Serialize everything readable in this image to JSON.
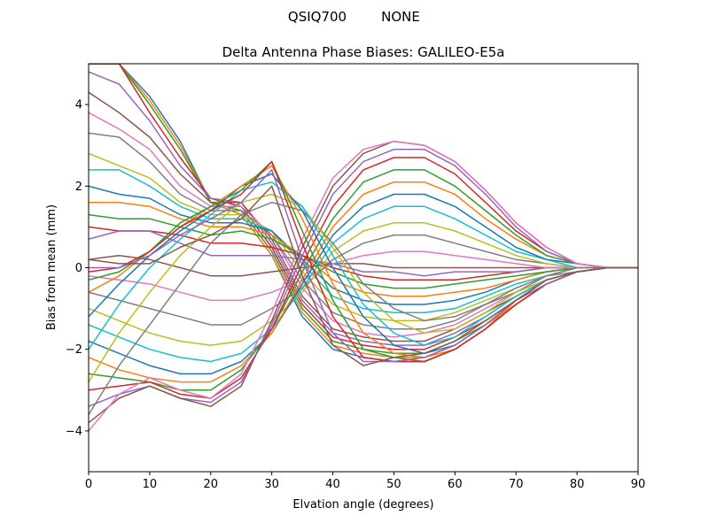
{
  "suptitle_left": "QSIQ700",
  "suptitle_right": "NONE",
  "chart_data": {
    "type": "line",
    "title": "Delta Antenna Phase Biases: GALILEO-E5a",
    "xlabel": "Elvation angle (degrees)",
    "ylabel": "Bias from mean (mm)",
    "xlim": [
      0,
      90
    ],
    "ylim": [
      -5,
      5
    ],
    "xticks": [
      "0",
      "10",
      "20",
      "30",
      "40",
      "50",
      "60",
      "70",
      "80",
      "90"
    ],
    "yticks": [
      "−4",
      "−2",
      "0",
      "2",
      "4"
    ],
    "grid": false,
    "legend": "none",
    "colors": [
      "#1f77b4",
      "#ff7f0e",
      "#2ca02c",
      "#d62728",
      "#9467bd",
      "#8c564b",
      "#e377c2",
      "#7f7f7f",
      "#bcbd22",
      "#17becf"
    ],
    "x": [
      0,
      5,
      10,
      15,
      20,
      25,
      30,
      35,
      40,
      45,
      50,
      55,
      60,
      65,
      70,
      75,
      80,
      85,
      90
    ],
    "series": [
      {
        "values": [
          5.0,
          5.0,
          4.2,
          3.1,
          1.6,
          1.3,
          0.3,
          -1.2,
          -2.0,
          -2.2,
          -2.3,
          -2.3,
          -2.0,
          -1.5,
          -0.9,
          -0.4,
          -0.1,
          0.0,
          0.0
        ]
      },
      {
        "values": [
          5.0,
          5.0,
          4.1,
          3.0,
          1.6,
          1.3,
          0.3,
          -1.1,
          -1.9,
          -2.1,
          -2.2,
          -2.2,
          -1.9,
          -1.4,
          -0.9,
          -0.4,
          -0.1,
          0.0,
          0.0
        ]
      },
      {
        "values": [
          5.0,
          5.0,
          4.0,
          2.9,
          1.6,
          1.4,
          0.4,
          -1.0,
          -1.8,
          -2.0,
          -2.1,
          -2.1,
          -1.8,
          -1.4,
          -0.8,
          -0.4,
          -0.1,
          0.0,
          0.0
        ]
      },
      {
        "values": [
          5.0,
          5.0,
          3.8,
          2.7,
          1.7,
          1.5,
          0.5,
          -0.9,
          -1.7,
          -1.9,
          -2.0,
          -2.0,
          -1.7,
          -1.3,
          -0.8,
          -0.3,
          -0.1,
          0.0,
          0.0
        ]
      },
      {
        "values": [
          4.8,
          4.5,
          3.6,
          2.5,
          1.7,
          1.6,
          0.6,
          -0.8,
          -1.6,
          -1.8,
          -1.9,
          -1.9,
          -1.6,
          -1.2,
          -0.7,
          -0.3,
          -0.1,
          0.0,
          0.0
        ]
      },
      {
        "values": [
          4.3,
          3.8,
          3.2,
          2.3,
          1.6,
          1.6,
          0.7,
          -0.7,
          -1.5,
          -1.7,
          -1.8,
          -1.8,
          -1.5,
          -1.1,
          -0.7,
          -0.3,
          -0.1,
          0.0,
          0.0
        ]
      },
      {
        "values": [
          3.8,
          3.4,
          2.9,
          2.0,
          1.5,
          1.5,
          0.8,
          -0.5,
          -1.3,
          -1.6,
          -1.7,
          -1.6,
          -1.4,
          -1.0,
          -0.6,
          -0.3,
          -0.1,
          0.0,
          0.0
        ]
      },
      {
        "values": [
          3.3,
          3.2,
          2.6,
          1.8,
          1.4,
          1.4,
          0.8,
          -0.3,
          -1.1,
          -1.4,
          -1.5,
          -1.5,
          -1.3,
          -0.9,
          -0.6,
          -0.2,
          -0.1,
          0.0,
          0.0
        ]
      },
      {
        "values": [
          2.8,
          2.5,
          2.2,
          1.6,
          1.3,
          1.3,
          0.9,
          -0.1,
          -0.9,
          -1.2,
          -1.3,
          -1.3,
          -1.1,
          -0.8,
          -0.5,
          -0.2,
          0.0,
          0.0,
          0.0
        ]
      },
      {
        "values": [
          2.4,
          2.4,
          2.0,
          1.5,
          1.2,
          1.2,
          0.9,
          0.1,
          -0.7,
          -1.0,
          -1.1,
          -1.1,
          -1.0,
          -0.7,
          -0.4,
          -0.2,
          0.0,
          0.0,
          0.0
        ]
      },
      {
        "values": [
          2.0,
          1.8,
          1.7,
          1.3,
          1.1,
          1.1,
          0.9,
          0.2,
          -0.5,
          -0.8,
          -0.9,
          -0.9,
          -0.8,
          -0.6,
          -0.3,
          -0.1,
          0.0,
          0.0,
          0.0
        ]
      },
      {
        "values": [
          1.6,
          1.6,
          1.5,
          1.2,
          1.0,
          1.0,
          0.8,
          0.3,
          -0.3,
          -0.6,
          -0.7,
          -0.7,
          -0.6,
          -0.5,
          -0.3,
          -0.1,
          0.0,
          0.0,
          0.0
        ]
      },
      {
        "values": [
          1.3,
          1.2,
          1.2,
          1.0,
          0.8,
          0.9,
          0.7,
          0.3,
          -0.1,
          -0.4,
          -0.5,
          -0.5,
          -0.4,
          -0.3,
          -0.2,
          -0.1,
          0.0,
          0.0,
          0.0
        ]
      },
      {
        "values": [
          1.0,
          0.9,
          0.9,
          0.8,
          0.6,
          0.6,
          0.5,
          0.3,
          0.0,
          -0.2,
          -0.3,
          -0.3,
          -0.3,
          -0.2,
          -0.1,
          0.0,
          0.0,
          0.0,
          0.0
        ]
      },
      {
        "values": [
          0.7,
          0.9,
          0.9,
          0.6,
          0.3,
          0.3,
          0.3,
          0.2,
          0.1,
          -0.1,
          -0.1,
          -0.2,
          -0.1,
          -0.1,
          -0.1,
          0.0,
          0.0,
          0.0,
          0.0
        ]
      },
      {
        "values": [
          0.2,
          0.3,
          0.2,
          0.0,
          -0.2,
          -0.2,
          -0.1,
          0.0,
          0.1,
          0.1,
          0.0,
          0.0,
          0.0,
          0.0,
          0.0,
          0.0,
          0.0,
          0.0,
          0.0
        ]
      },
      {
        "values": [
          -0.2,
          -0.3,
          -0.4,
          -0.6,
          -0.8,
          -0.8,
          -0.6,
          -0.3,
          0.1,
          0.3,
          0.4,
          0.4,
          0.3,
          0.2,
          0.1,
          0.0,
          0.0,
          0.0,
          0.0
        ]
      },
      {
        "values": [
          -0.6,
          -0.8,
          -1.0,
          -1.2,
          -1.4,
          -1.4,
          -1.0,
          -0.5,
          0.2,
          0.6,
          0.8,
          0.8,
          0.6,
          0.4,
          0.2,
          0.1,
          0.0,
          0.0,
          0.0
        ]
      },
      {
        "values": [
          -1.0,
          -1.3,
          -1.6,
          -1.8,
          -1.9,
          -1.8,
          -1.3,
          -0.6,
          0.4,
          0.9,
          1.1,
          1.1,
          0.9,
          0.6,
          0.3,
          0.1,
          0.0,
          0.0,
          0.0
        ]
      },
      {
        "values": [
          -1.4,
          -1.7,
          -2.0,
          -2.2,
          -2.3,
          -2.1,
          -1.5,
          -0.5,
          0.6,
          1.2,
          1.5,
          1.5,
          1.2,
          0.8,
          0.4,
          0.2,
          0.0,
          0.0,
          0.0
        ]
      },
      {
        "values": [
          -1.8,
          -2.1,
          -2.4,
          -2.6,
          -2.6,
          -2.3,
          -1.6,
          -0.4,
          0.8,
          1.5,
          1.8,
          1.8,
          1.5,
          1.0,
          0.5,
          0.2,
          0.1,
          0.0,
          0.0
        ]
      },
      {
        "values": [
          -2.2,
          -2.5,
          -2.7,
          -2.8,
          -2.8,
          -2.4,
          -1.6,
          -0.3,
          1.0,
          1.8,
          2.1,
          2.1,
          1.8,
          1.2,
          0.7,
          0.3,
          0.1,
          0.0,
          0.0
        ]
      },
      {
        "values": [
          -2.6,
          -2.7,
          -2.8,
          -3.0,
          -3.0,
          -2.5,
          -1.5,
          -0.1,
          1.2,
          2.1,
          2.4,
          2.4,
          2.0,
          1.4,
          0.8,
          0.3,
          0.1,
          0.0,
          0.0
        ]
      },
      {
        "values": [
          -3.0,
          -2.9,
          -2.8,
          -3.1,
          -3.2,
          -2.7,
          -1.5,
          0.1,
          1.5,
          2.4,
          2.7,
          2.7,
          2.3,
          1.6,
          0.9,
          0.4,
          0.1,
          0.0,
          0.0
        ]
      },
      {
        "values": [
          -3.4,
          -3.1,
          -2.9,
          -3.2,
          -3.3,
          -2.8,
          -1.4,
          0.3,
          1.8,
          2.6,
          2.9,
          2.9,
          2.5,
          1.8,
          1.0,
          0.4,
          0.1,
          0.0,
          0.0
        ]
      },
      {
        "values": [
          -3.8,
          -3.2,
          -2.9,
          -3.2,
          -3.4,
          -2.9,
          -1.3,
          0.5,
          2.0,
          2.8,
          3.1,
          3.0,
          2.6,
          1.9,
          1.1,
          0.5,
          0.1,
          0.0,
          0.0
        ]
      },
      {
        "values": [
          -4.0,
          -3.1,
          -2.7,
          -3.0,
          -3.2,
          -2.6,
          -1.1,
          0.7,
          2.2,
          2.9,
          3.1,
          3.0,
          2.6,
          1.9,
          1.1,
          0.5,
          0.1,
          0.0,
          0.0
        ]
      },
      {
        "values": [
          -3.6,
          -2.4,
          -1.4,
          -0.4,
          0.6,
          1.3,
          1.6,
          1.4,
          0.6,
          -0.4,
          -1.0,
          -1.3,
          -1.2,
          -0.9,
          -0.5,
          -0.2,
          0.0,
          0.0,
          0.0
        ]
      },
      {
        "values": [
          -2.8,
          -1.6,
          -0.6,
          0.3,
          1.0,
          1.6,
          1.8,
          1.5,
          0.5,
          -0.6,
          -1.3,
          -1.6,
          -1.5,
          -1.1,
          -0.6,
          -0.3,
          -0.1,
          0.0,
          0.0
        ]
      },
      {
        "values": [
          -2.0,
          -0.9,
          0.0,
          0.7,
          1.3,
          1.9,
          2.1,
          1.5,
          0.3,
          -0.9,
          -1.6,
          -1.9,
          -1.7,
          -1.2,
          -0.7,
          -0.3,
          -0.1,
          0.0,
          0.0
        ]
      },
      {
        "values": [
          -1.2,
          -0.4,
          0.3,
          0.9,
          1.4,
          2.0,
          2.3,
          1.4,
          0.0,
          -1.2,
          -1.9,
          -2.1,
          -1.9,
          -1.4,
          -0.8,
          -0.3,
          -0.1,
          0.0,
          0.0
        ]
      },
      {
        "values": [
          -0.6,
          -0.2,
          0.4,
          1.0,
          1.5,
          2.0,
          2.5,
          1.2,
          -0.4,
          -1.6,
          -2.1,
          -2.2,
          -2.0,
          -1.5,
          -0.8,
          -0.3,
          -0.1,
          0.0,
          0.0
        ]
      },
      {
        "values": [
          -0.3,
          -0.1,
          0.4,
          1.1,
          1.5,
          1.9,
          2.6,
          0.9,
          -0.8,
          -2.0,
          -2.2,
          -2.3,
          -2.0,
          -1.5,
          -0.9,
          -0.4,
          -0.1,
          0.0,
          0.0
        ]
      },
      {
        "values": [
          -0.1,
          0.0,
          0.4,
          1.0,
          1.4,
          1.8,
          2.6,
          0.6,
          -1.2,
          -2.2,
          -2.3,
          -2.3,
          -2.0,
          -1.5,
          -0.9,
          -0.4,
          -0.1,
          0.0,
          0.0
        ]
      },
      {
        "values": [
          0.0,
          0.0,
          0.3,
          0.8,
          1.2,
          1.6,
          2.4,
          0.2,
          -1.6,
          -2.3,
          -2.3,
          -2.2,
          -1.9,
          -1.4,
          -0.8,
          -0.4,
          -0.1,
          0.0,
          0.0
        ]
      },
      {
        "values": [
          0.2,
          0.1,
          0.1,
          0.5,
          0.8,
          1.2,
          2.0,
          -0.2,
          -1.9,
          -2.4,
          -2.2,
          -2.1,
          -1.8,
          -1.3,
          -0.8,
          -0.3,
          -0.1,
          0.0,
          0.0
        ]
      }
    ]
  }
}
